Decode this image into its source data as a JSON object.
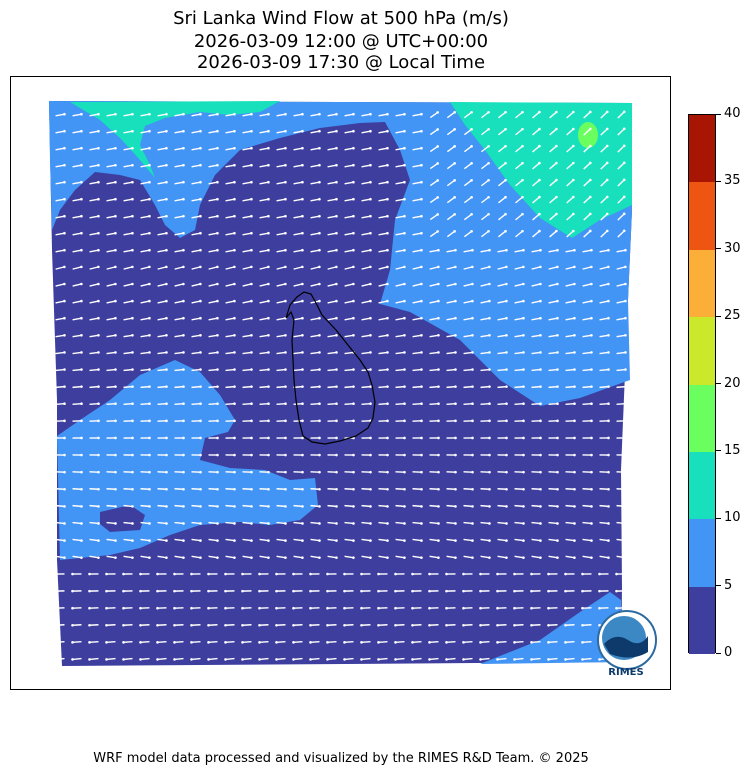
{
  "title": {
    "line1": "Sri Lanka Wind Flow at 500 hPa (m/s)",
    "line2": "2026-03-09 12:00 @ UTC+00:00",
    "line3": "2026-03-09 17:30 @ Local Time"
  },
  "colorbar": {
    "ticks": [
      "0",
      "5",
      "10",
      "15",
      "20",
      "25",
      "30",
      "35",
      "40"
    ],
    "colors": [
      "#3d3e9e",
      "#4294f5",
      "#18dfbc",
      "#6afe5f",
      "#cce82a",
      "#fcaf38",
      "#ee5512",
      "#a81603"
    ]
  },
  "map": {
    "ocean_weak_color": "#3d3e9e",
    "moderate_color": "#4294f5",
    "strong_color": "#18dfbc",
    "peak_color": "#6afe5f",
    "arrow_color": "#ffffff",
    "coast_color": "#000000"
  },
  "logo": {
    "text": "RIMES"
  },
  "footer": "WRF model data processed and visualized by the RIMES R&D Team. © 2025"
}
